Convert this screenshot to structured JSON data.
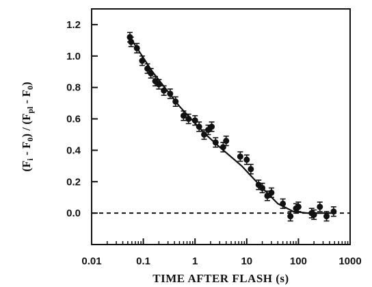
{
  "chart_data": {
    "type": "scatter",
    "xscale": "log",
    "xlim": [
      0.01,
      1000
    ],
    "ylim": [
      -0.2,
      1.3
    ],
    "xticks": [
      0.01,
      0.1,
      1,
      10,
      100,
      1000
    ],
    "xtick_labels": [
      "0.01",
      "0.1",
      "1",
      "10",
      "100",
      "1000"
    ],
    "yticks": [
      0.0,
      0.2,
      0.4,
      0.6,
      0.8,
      1.0,
      1.2
    ],
    "ytick_labels": [
      "0.0",
      "0.2",
      "0.4",
      "0.6",
      "0.8",
      "1.0",
      "1.2"
    ],
    "xlabel": "TIME AFTER FLASH (s)",
    "ylabel_parts": {
      "open1": "(F",
      "sub1": "i",
      "mid1": " - F",
      "sub2": "0",
      "close1": ")",
      "slash": " / ",
      "open2": "(F",
      "sub3": "pl",
      "mid2": " - F",
      "sub4": "0",
      "close2": ")"
    },
    "grid": false,
    "legend": "none",
    "reference_line": {
      "y": 0.0,
      "style": "dashed"
    },
    "points": [
      {
        "x": 0.055,
        "y": 1.12,
        "err": 0.03
      },
      {
        "x": 0.058,
        "y": 1.09,
        "err": 0.03
      },
      {
        "x": 0.075,
        "y": 1.05,
        "err": 0.03
      },
      {
        "x": 0.095,
        "y": 0.97,
        "err": 0.03
      },
      {
        "x": 0.12,
        "y": 0.92,
        "err": 0.03
      },
      {
        "x": 0.14,
        "y": 0.89,
        "err": 0.03
      },
      {
        "x": 0.17,
        "y": 0.84,
        "err": 0.03
      },
      {
        "x": 0.2,
        "y": 0.82,
        "err": 0.03
      },
      {
        "x": 0.25,
        "y": 0.78,
        "err": 0.03
      },
      {
        "x": 0.33,
        "y": 0.76,
        "err": 0.03
      },
      {
        "x": 0.42,
        "y": 0.71,
        "err": 0.03
      },
      {
        "x": 0.6,
        "y": 0.62,
        "err": 0.03
      },
      {
        "x": 0.75,
        "y": 0.6,
        "err": 0.03
      },
      {
        "x": 1.0,
        "y": 0.59,
        "err": 0.03
      },
      {
        "x": 1.2,
        "y": 0.55,
        "err": 0.03
      },
      {
        "x": 1.5,
        "y": 0.5,
        "err": 0.03
      },
      {
        "x": 1.8,
        "y": 0.53,
        "err": 0.03
      },
      {
        "x": 2.1,
        "y": 0.55,
        "err": 0.03
      },
      {
        "x": 2.5,
        "y": 0.45,
        "err": 0.03
      },
      {
        "x": 3.5,
        "y": 0.42,
        "err": 0.03
      },
      {
        "x": 4.0,
        "y": 0.46,
        "err": 0.03
      },
      {
        "x": 7.5,
        "y": 0.36,
        "err": 0.03
      },
      {
        "x": 10.0,
        "y": 0.34,
        "err": 0.03
      },
      {
        "x": 12.0,
        "y": 0.28,
        "err": 0.03
      },
      {
        "x": 17.0,
        "y": 0.18,
        "err": 0.03
      },
      {
        "x": 20.0,
        "y": 0.16,
        "err": 0.03
      },
      {
        "x": 25.0,
        "y": 0.11,
        "err": 0.03
      },
      {
        "x": 30.0,
        "y": 0.13,
        "err": 0.03
      },
      {
        "x": 50.0,
        "y": 0.06,
        "err": 0.03
      },
      {
        "x": 70.0,
        "y": -0.02,
        "err": 0.03
      },
      {
        "x": 90.0,
        "y": 0.03,
        "err": 0.03
      },
      {
        "x": 100.0,
        "y": 0.04,
        "err": 0.03
      },
      {
        "x": 180.0,
        "y": 0.0,
        "err": 0.03
      },
      {
        "x": 200.0,
        "y": -0.01,
        "err": 0.03
      },
      {
        "x": 260.0,
        "y": 0.04,
        "err": 0.03
      },
      {
        "x": 350.0,
        "y": -0.02,
        "err": 0.03
      },
      {
        "x": 480.0,
        "y": 0.01,
        "err": 0.03
      }
    ],
    "fit_line": [
      {
        "x": 0.055,
        "y": 1.12
      },
      {
        "x": 0.15,
        "y": 0.9
      },
      {
        "x": 0.5,
        "y": 0.68
      },
      {
        "x": 1.5,
        "y": 0.51
      },
      {
        "x": 3.0,
        "y": 0.42
      },
      {
        "x": 8.0,
        "y": 0.3
      },
      {
        "x": 20.0,
        "y": 0.16
      },
      {
        "x": 40.0,
        "y": 0.06
      },
      {
        "x": 80.0,
        "y": 0.01
      },
      {
        "x": 150.0,
        "y": 0.0
      },
      {
        "x": 500.0,
        "y": 0.0
      }
    ]
  }
}
